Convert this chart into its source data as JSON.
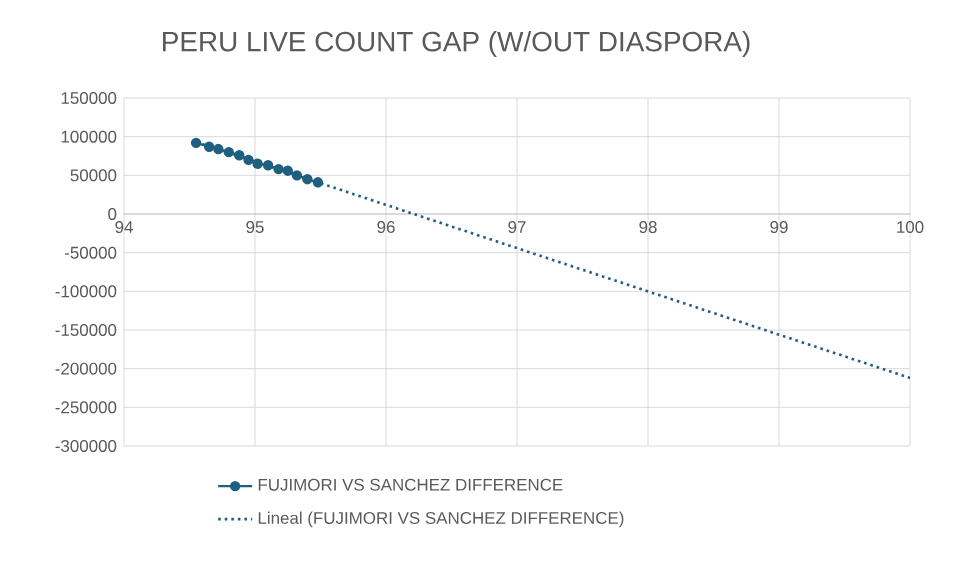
{
  "chart_data": {
    "type": "line",
    "title": "PERU LIVE COUNT GAP (W/OUT DIASPORA)",
    "series": [
      {
        "name": "FUJIMORI VS SANCHEZ DIFFERENCE",
        "color": "#1f5f7f",
        "marker": "circle",
        "line_style": "solid",
        "x": [
          94.55,
          94.65,
          94.72,
          94.8,
          94.88,
          94.95,
          95.02,
          95.1,
          95.18,
          95.25,
          95.32,
          95.4,
          95.48
        ],
        "values": [
          92000,
          87000,
          84000,
          80000,
          76000,
          70000,
          65000,
          63000,
          58000,
          56000,
          50000,
          45000,
          41000
        ]
      },
      {
        "name": "Lineal (FUJIMORI VS SANCHEZ DIFFERENCE)",
        "type": "line",
        "color": "#1f5f7f",
        "marker": "none",
        "line_style": "dotted",
        "x": [
          94.55,
          100
        ],
        "values": [
          93000,
          -212000
        ]
      }
    ],
    "xlim": [
      94,
      100
    ],
    "xticks": [
      94,
      95,
      96,
      97,
      98,
      99,
      100
    ],
    "ylim": [
      -300000,
      150000
    ],
    "yticks": [
      -300000,
      -250000,
      -200000,
      -150000,
      -100000,
      -50000,
      0,
      50000,
      100000,
      150000
    ],
    "grid": true,
    "legend": "bottom"
  }
}
